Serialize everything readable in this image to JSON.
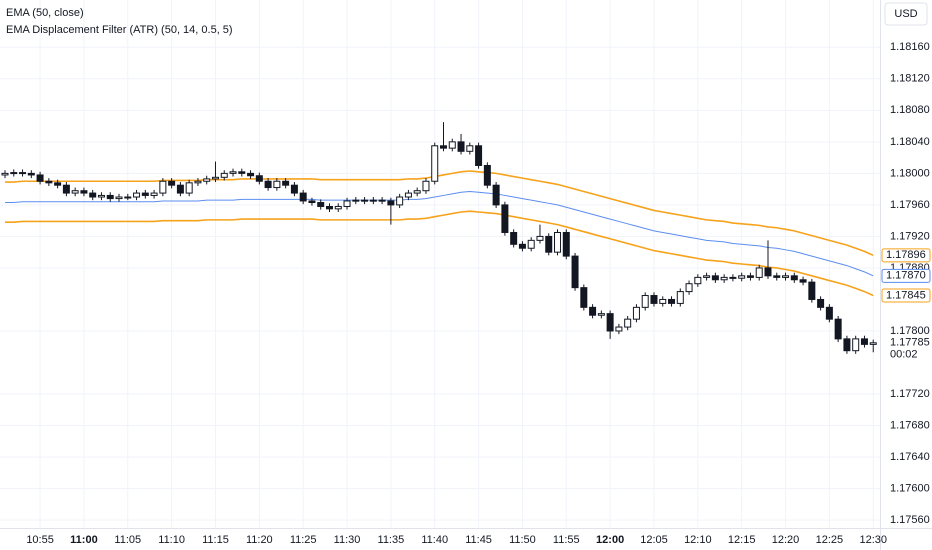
{
  "chart_data": {
    "type": "candlestick",
    "legend_lines": [
      "EMA (50, close)",
      "EMA Displacement Filter (ATR) (50, 14, 0.5, 5)"
    ],
    "currency": "USD",
    "categories": [
      null,
      null,
      null,
      null,
      "10:55",
      null,
      null,
      null,
      null,
      "11:00",
      null,
      null,
      null,
      null,
      "11:05",
      null,
      null,
      null,
      null,
      "11:10",
      null,
      null,
      null,
      null,
      "11:15",
      null,
      null,
      null,
      null,
      "11:20",
      null,
      null,
      null,
      null,
      "11:25",
      null,
      null,
      null,
      null,
      "11:30",
      null,
      null,
      null,
      null,
      "11:35",
      null,
      null,
      null,
      null,
      "11:40",
      null,
      null,
      null,
      null,
      "11:45",
      null,
      null,
      null,
      null,
      "11:50",
      null,
      null,
      null,
      null,
      "11:55",
      null,
      null,
      null,
      null,
      "12:00",
      null,
      null,
      null,
      null,
      "12:05",
      null,
      null,
      null,
      null,
      "12:10",
      null,
      null,
      null,
      null,
      "12:15",
      null,
      null,
      null,
      null,
      "12:20",
      null,
      null,
      null,
      null,
      "12:25",
      null,
      null,
      null,
      null,
      "12:30"
    ],
    "emphasized_categories": [
      "11:00",
      "12:00"
    ],
    "open": [
      1.17998,
      1.18,
      1.18001,
      1.18,
      1.17998,
      1.1799,
      1.17988,
      1.17985,
      1.17975,
      1.17978,
      1.17975,
      1.1797,
      1.17972,
      1.17968,
      1.1797,
      1.1797,
      1.17975,
      1.17972,
      1.17975,
      1.1799,
      1.17985,
      1.17975,
      1.17988,
      1.1799,
      1.17993,
      1.17995,
      1.18,
      1.18002,
      1.18,
      1.17997,
      1.1799,
      1.17982,
      1.1799,
      1.17985,
      1.17975,
      1.17965,
      1.17963,
      1.17958,
      1.17955,
      1.17958,
      1.17965,
      1.17966,
      1.17965,
      1.17966,
      1.17965,
      1.1796,
      1.1797,
      1.17975,
      1.17978,
      1.1799,
      1.18035,
      1.18032,
      1.1804,
      1.18028,
      1.18035,
      1.1801,
      1.17985,
      1.1796,
      1.17925,
      1.1791,
      1.17905,
      1.17915,
      1.1792,
      1.179,
      1.17925,
      1.17895,
      1.17855,
      1.1783,
      1.1782,
      1.17822,
      1.178,
      1.17805,
      1.17815,
      1.1783,
      1.17845,
      1.17835,
      1.1784,
      1.17835,
      1.1785,
      1.1786,
      1.17868,
      1.1787,
      1.17865,
      1.17868,
      1.17867,
      1.1787,
      1.17868,
      1.1788,
      1.1787,
      1.17868,
      1.1787,
      1.17865,
      1.17862,
      1.1784,
      1.1783,
      1.17815,
      1.1779,
      1.17775,
      1.1779,
      1.17783
    ],
    "high": [
      1.18004,
      1.18005,
      1.18005,
      1.18004,
      1.18002,
      1.17994,
      1.17992,
      1.17989,
      1.17982,
      1.17982,
      1.17979,
      1.17976,
      1.17976,
      1.17974,
      1.17974,
      1.17979,
      1.17979,
      1.17979,
      1.17994,
      1.17994,
      1.17989,
      1.17992,
      1.17994,
      1.17997,
      1.18015,
      1.18004,
      1.18006,
      1.18006,
      1.18004,
      1.18001,
      1.17994,
      1.17994,
      1.17994,
      1.17989,
      1.17979,
      1.17969,
      1.17967,
      1.17962,
      1.17962,
      1.17969,
      1.1797,
      1.1797,
      1.1797,
      1.1797,
      1.17969,
      1.17974,
      1.17979,
      1.17982,
      1.17994,
      1.18039,
      1.18065,
      1.18044,
      1.1805,
      1.18039,
      1.18039,
      1.18014,
      1.17989,
      1.17964,
      1.17929,
      1.17914,
      1.17919,
      1.17935,
      1.17924,
      1.17929,
      1.17929,
      1.17899,
      1.17859,
      1.17834,
      1.17826,
      1.17826,
      1.17809,
      1.17819,
      1.17834,
      1.17849,
      1.17849,
      1.17844,
      1.17844,
      1.17854,
      1.17864,
      1.17872,
      1.17874,
      1.17874,
      1.17872,
      1.17872,
      1.17874,
      1.17874,
      1.17884,
      1.17915,
      1.17874,
      1.17874,
      1.17874,
      1.17869,
      1.17866,
      1.17844,
      1.17834,
      1.17819,
      1.17794,
      1.17794,
      1.17794,
      1.17789
    ],
    "low": [
      1.17994,
      1.17996,
      1.17996,
      1.17994,
      1.17986,
      1.17984,
      1.17981,
      1.17971,
      1.17971,
      1.17971,
      1.17966,
      1.17966,
      1.17964,
      1.17964,
      1.17966,
      1.17966,
      1.17968,
      1.17968,
      1.17971,
      1.17981,
      1.17971,
      1.17971,
      1.17984,
      1.17986,
      1.17989,
      1.17991,
      1.17996,
      1.17996,
      1.17993,
      1.17986,
      1.17978,
      1.17978,
      1.17981,
      1.17971,
      1.17961,
      1.17959,
      1.17954,
      1.17951,
      1.17951,
      1.17954,
      1.17961,
      1.17961,
      1.17961,
      1.17961,
      1.17935,
      1.17956,
      1.17966,
      1.17971,
      1.17974,
      1.17986,
      1.18028,
      1.18028,
      1.18024,
      1.18024,
      1.18006,
      1.17981,
      1.17956,
      1.17921,
      1.17906,
      1.17901,
      1.17901,
      1.17911,
      1.17896,
      1.17896,
      1.17891,
      1.17851,
      1.17826,
      1.17816,
      1.17816,
      1.1779,
      1.17796,
      1.17801,
      1.17811,
      1.17826,
      1.17831,
      1.17831,
      1.17831,
      1.17831,
      1.17846,
      1.17856,
      1.17864,
      1.17861,
      1.17861,
      1.17863,
      1.17863,
      1.17864,
      1.17864,
      1.17866,
      1.17864,
      1.17864,
      1.17861,
      1.17858,
      1.17836,
      1.17826,
      1.17811,
      1.17786,
      1.17771,
      1.17771,
      1.17779,
      1.17773
    ],
    "close": [
      1.18,
      1.18001,
      1.18,
      1.17998,
      1.1799,
      1.17988,
      1.17985,
      1.17975,
      1.17978,
      1.17975,
      1.1797,
      1.17972,
      1.17968,
      1.1797,
      1.1797,
      1.17975,
      1.17972,
      1.17975,
      1.1799,
      1.17985,
      1.17975,
      1.17988,
      1.1799,
      1.17993,
      1.17995,
      1.18,
      1.18002,
      1.18,
      1.17997,
      1.1799,
      1.17982,
      1.1799,
      1.17985,
      1.17975,
      1.17965,
      1.17963,
      1.17958,
      1.17955,
      1.17958,
      1.17965,
      1.17966,
      1.17965,
      1.17966,
      1.17965,
      1.1796,
      1.1797,
      1.17975,
      1.17978,
      1.1799,
      1.18035,
      1.18032,
      1.1804,
      1.18028,
      1.18035,
      1.1801,
      1.17985,
      1.1796,
      1.17925,
      1.1791,
      1.17905,
      1.17915,
      1.1792,
      1.179,
      1.17925,
      1.17895,
      1.17855,
      1.1783,
      1.1782,
      1.17822,
      1.178,
      1.17805,
      1.17815,
      1.1783,
      1.17845,
      1.17835,
      1.1784,
      1.17835,
      1.1785,
      1.1786,
      1.17868,
      1.1787,
      1.17865,
      1.17868,
      1.17867,
      1.1787,
      1.17868,
      1.1788,
      1.1787,
      1.17868,
      1.1787,
      1.17865,
      1.17862,
      1.1784,
      1.1783,
      1.17815,
      1.1779,
      1.17775,
      1.1779,
      1.17783,
      1.17785
    ],
    "up_color": "#ffffff",
    "down_color": "#131722",
    "lines": [
      {
        "color": "#f7a21b",
        "last_label": "1.17896",
        "values": [
          1.17989,
          1.17989,
          1.1799,
          1.1799,
          1.1799,
          1.1799,
          1.1799,
          1.1799,
          1.1799,
          1.1799,
          1.1799,
          1.1799,
          1.1799,
          1.1799,
          1.1799,
          1.1799,
          1.1799,
          1.1799,
          1.17991,
          1.17991,
          1.17991,
          1.17991,
          1.17991,
          1.17992,
          1.17992,
          1.17992,
          1.17992,
          1.17993,
          1.17993,
          1.17993,
          1.17993,
          1.17993,
          1.17993,
          1.17993,
          1.17993,
          1.17993,
          1.17992,
          1.17992,
          1.17992,
          1.17992,
          1.17992,
          1.17992,
          1.17992,
          1.17992,
          1.17992,
          1.17992,
          1.17993,
          1.17993,
          1.17994,
          1.17996,
          1.17998,
          1.18,
          1.18002,
          1.18003,
          1.18002,
          1.18001,
          1.18,
          1.17998,
          1.17996,
          1.17994,
          1.17992,
          1.1799,
          1.17988,
          1.17986,
          1.17983,
          1.1798,
          1.17977,
          1.17974,
          1.17971,
          1.17968,
          1.17965,
          1.17962,
          1.17959,
          1.17956,
          1.17953,
          1.17951,
          1.17949,
          1.17947,
          1.17945,
          1.17943,
          1.17941,
          1.1794,
          1.17939,
          1.17937,
          1.17936,
          1.17935,
          1.17934,
          1.17932,
          1.17931,
          1.17929,
          1.17927,
          1.17924,
          1.17921,
          1.17918,
          1.17915,
          1.17912,
          1.17909,
          1.17905,
          1.17901,
          1.17896
        ]
      },
      {
        "color": "#5b8def",
        "last_label": "1.17870",
        "values": [
          1.17963,
          1.17963,
          1.17964,
          1.17964,
          1.17964,
          1.17964,
          1.17964,
          1.17964,
          1.17964,
          1.17964,
          1.17964,
          1.17964,
          1.17964,
          1.17964,
          1.17964,
          1.17964,
          1.17964,
          1.17964,
          1.17965,
          1.17965,
          1.17965,
          1.17965,
          1.17965,
          1.17966,
          1.17966,
          1.17966,
          1.17966,
          1.17967,
          1.17967,
          1.17967,
          1.17967,
          1.17967,
          1.17967,
          1.17967,
          1.17967,
          1.17967,
          1.17966,
          1.17966,
          1.17966,
          1.17966,
          1.17966,
          1.17966,
          1.17966,
          1.17966,
          1.17966,
          1.17966,
          1.17967,
          1.17967,
          1.17968,
          1.1797,
          1.17972,
          1.17974,
          1.17976,
          1.17977,
          1.17976,
          1.17975,
          1.17974,
          1.17972,
          1.1797,
          1.17968,
          1.17966,
          1.17964,
          1.17962,
          1.1796,
          1.17957,
          1.17954,
          1.17951,
          1.17948,
          1.17945,
          1.17942,
          1.17939,
          1.17936,
          1.17933,
          1.1793,
          1.17927,
          1.17925,
          1.17923,
          1.17921,
          1.17919,
          1.17917,
          1.17915,
          1.17914,
          1.17913,
          1.17911,
          1.1791,
          1.17909,
          1.17908,
          1.17906,
          1.17905,
          1.17903,
          1.17901,
          1.17898,
          1.17895,
          1.17892,
          1.17889,
          1.17886,
          1.17883,
          1.17879,
          1.17875,
          1.1787
        ]
      },
      {
        "color": "#f7a21b",
        "last_label": "1.17845",
        "values": [
          1.17938,
          1.17938,
          1.17939,
          1.17939,
          1.17939,
          1.17939,
          1.17939,
          1.17939,
          1.17939,
          1.17939,
          1.17939,
          1.17939,
          1.17939,
          1.17939,
          1.17939,
          1.17939,
          1.17939,
          1.17939,
          1.1794,
          1.1794,
          1.1794,
          1.1794,
          1.1794,
          1.17941,
          1.17941,
          1.17941,
          1.17941,
          1.17942,
          1.17942,
          1.17942,
          1.17942,
          1.17942,
          1.17942,
          1.17942,
          1.17942,
          1.17942,
          1.17941,
          1.17941,
          1.17941,
          1.17941,
          1.17941,
          1.17941,
          1.17941,
          1.17941,
          1.17941,
          1.17941,
          1.17942,
          1.17942,
          1.17943,
          1.17945,
          1.17947,
          1.17949,
          1.17951,
          1.17952,
          1.17951,
          1.1795,
          1.17949,
          1.17947,
          1.17945,
          1.17943,
          1.17941,
          1.17939,
          1.17937,
          1.17935,
          1.17932,
          1.17929,
          1.17926,
          1.17923,
          1.1792,
          1.17917,
          1.17914,
          1.17911,
          1.17908,
          1.17905,
          1.17902,
          1.179,
          1.17898,
          1.17896,
          1.17894,
          1.17892,
          1.1789,
          1.17889,
          1.17888,
          1.17886,
          1.17885,
          1.17884,
          1.17883,
          1.17881,
          1.1788,
          1.17878,
          1.17876,
          1.17873,
          1.1787,
          1.17867,
          1.17864,
          1.17861,
          1.17858,
          1.17854,
          1.1785,
          1.17845
        ]
      }
    ],
    "ylim": [
      1.1755,
      1.1822
    ],
    "yticks": [
      {
        "value": 1.1816,
        "label": "1.18160"
      },
      {
        "value": 1.1812,
        "label": "1.18120"
      },
      {
        "value": 1.1808,
        "label": "1.18080"
      },
      {
        "value": 1.1804,
        "label": "1.18040"
      },
      {
        "value": 1.18,
        "label": "1.18000"
      },
      {
        "value": 1.1796,
        "label": "1.17960"
      },
      {
        "value": 1.1792,
        "label": "1.17920"
      },
      {
        "value": 1.1788,
        "label": "1.17880"
      },
      {
        "value": 1.178,
        "label": "1.17800"
      },
      {
        "value": 1.1772,
        "label": "1.17720"
      },
      {
        "value": 1.1768,
        "label": "1.17680"
      },
      {
        "value": 1.1764,
        "label": "1.17640"
      },
      {
        "value": 1.176,
        "label": "1.17600"
      },
      {
        "value": 1.1756,
        "label": "1.17560"
      }
    ],
    "grid": true,
    "last_price_label": "1.17785",
    "countdown": "00:02"
  }
}
